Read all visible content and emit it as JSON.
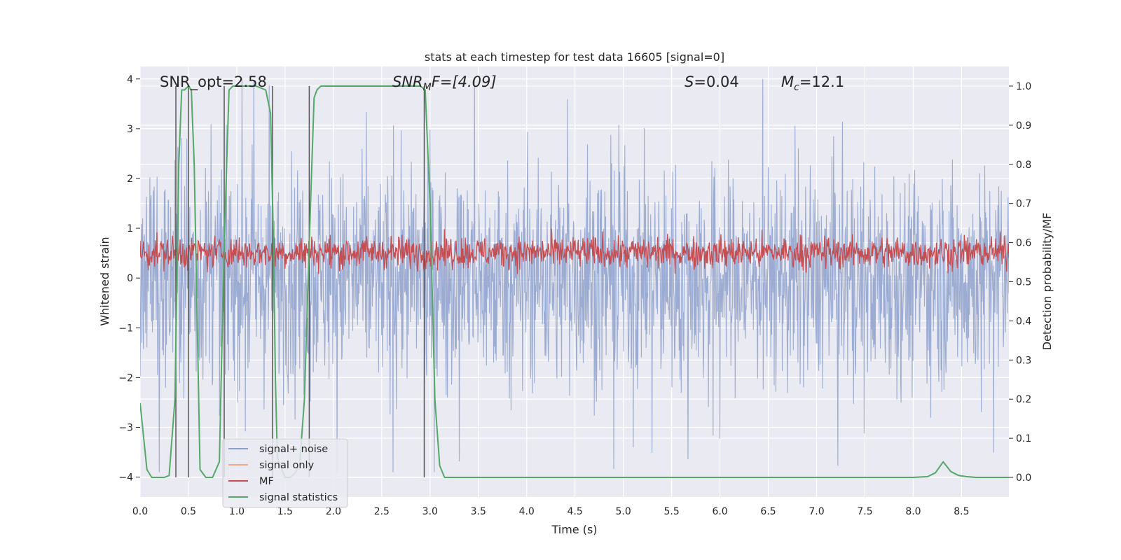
{
  "chart_data": {
    "type": "line",
    "title": "stats at each timestep for test data 16605 [signal=0]",
    "xlabel": "Time (s)",
    "ylabel_left": "Whitened strain",
    "ylabel_right": "Detection probability/MF",
    "xlim": [
      0,
      8.99
    ],
    "ylim_left": [
      -4.4,
      4.25
    ],
    "ylim_right": [
      -0.05,
      1.05
    ],
    "x_ticks": [
      "0.0",
      "0.5",
      "1.0",
      "1.5",
      "2.0",
      "2.5",
      "3.0",
      "3.5",
      "4.0",
      "4.5",
      "5.0",
      "5.5",
      "6.0",
      "6.5",
      "7.0",
      "7.5",
      "8.0",
      "8.5"
    ],
    "y_left_ticks": [
      "−4",
      "−3",
      "−2",
      "−1",
      "0",
      "1",
      "2",
      "3",
      "4"
    ],
    "y_right_ticks": [
      "0.0",
      "0.1",
      "0.2",
      "0.3",
      "0.4",
      "0.5",
      "0.6",
      "0.7",
      "0.8",
      "0.9",
      "1.0"
    ],
    "grid": true,
    "annotations": {
      "snr_opt": "SNR_opt=2.58",
      "snr_mf_var": "SNR",
      "snr_mf_sub": "M",
      "snr_mf_rest": "F=[4.09]",
      "s_var": "S",
      "s_rest": "=0.04",
      "mc_var": "M",
      "mc_sub": "c",
      "mc_rest": "=12.1"
    },
    "series": [
      {
        "name": "signal+ noise",
        "color": "#8da0cb",
        "axis": "left",
        "description_amplitude": [
          -3.9,
          4.0
        ],
        "n_samples": 2048
      },
      {
        "name": "signal only",
        "color": "#f4a582",
        "axis": "left",
        "values": []
      },
      {
        "name": "MF",
        "color": "#c44e52",
        "axis": "right",
        "band": [
          0.53,
          0.62
        ]
      },
      {
        "name": "signal statistics",
        "color": "#55a868",
        "axis": "right",
        "x": [
          0.0,
          0.07,
          0.12,
          0.2,
          0.25,
          0.3,
          0.36,
          0.4,
          0.43,
          0.46,
          0.5,
          0.53,
          0.56,
          0.62,
          0.68,
          0.75,
          0.82,
          0.87,
          0.92,
          0.96,
          1.05,
          1.2,
          1.3,
          1.35,
          1.38,
          1.4,
          1.42,
          1.5,
          1.55,
          1.6,
          1.65,
          1.7,
          1.75,
          1.8,
          1.83,
          1.87,
          2.0,
          2.3,
          2.6,
          2.9,
          2.95,
          3.0,
          3.05,
          3.1,
          3.15,
          3.3,
          4.0,
          5.0,
          6.0,
          7.0,
          8.0,
          8.15,
          8.23,
          8.31,
          8.39,
          8.47,
          8.55,
          8.65,
          8.8,
          8.99
        ],
        "values": [
          0.19,
          0.02,
          0.0,
          0.0,
          0.0,
          0.005,
          0.2,
          0.8,
          0.99,
          0.99,
          1.0,
          0.99,
          0.8,
          0.02,
          0.0,
          0.0,
          0.04,
          0.6,
          0.99,
          1.0,
          1.0,
          1.0,
          0.99,
          0.93,
          0.6,
          0.25,
          0.05,
          0.0,
          0.0,
          0.01,
          0.03,
          0.2,
          0.6,
          0.97,
          0.99,
          1.0,
          1.0,
          1.0,
          1.0,
          1.0,
          0.99,
          0.7,
          0.2,
          0.03,
          0.0,
          0.0,
          0.0,
          0.0,
          0.0,
          0.0,
          0.0,
          0.002,
          0.012,
          0.04,
          0.015,
          0.005,
          0.002,
          0.0,
          0.0,
          0.0
        ]
      }
    ],
    "vertical_lines_x": [
      0.37,
      0.5,
      0.87,
      1.37,
      1.75,
      2.94
    ],
    "legend": {
      "placement": "lower-left",
      "entries": [
        {
          "label": "signal+ noise",
          "color": "#8da0cb"
        },
        {
          "label": "signal only",
          "color": "#f4a582"
        },
        {
          "label": "MF",
          "color": "#c44e52"
        },
        {
          "label": "signal statistics",
          "color": "#55a868"
        }
      ]
    }
  }
}
